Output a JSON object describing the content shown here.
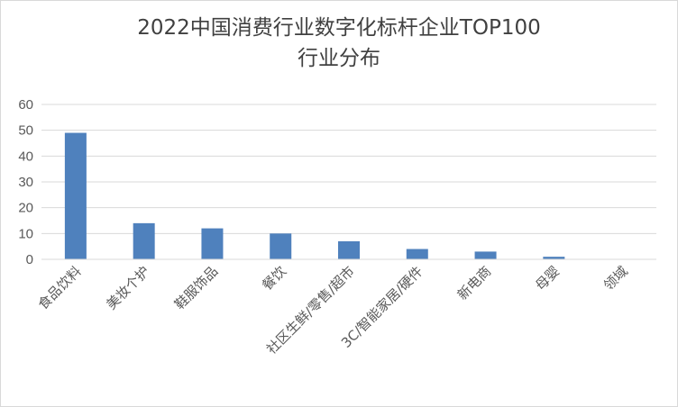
{
  "chart_data": {
    "type": "bar",
    "title_line1": "2022中国消费行业数字化标杆企业TOP100",
    "title_line2": "行业分布",
    "categories": [
      "食品饮料",
      "美妆个护",
      "鞋服饰品",
      "餐饮",
      "社区生鲜/零售/超市",
      "3C/智能家居/硬件",
      "新电商",
      "母婴",
      "领域"
    ],
    "values": [
      49,
      14,
      12,
      10,
      7,
      4,
      3,
      1,
      0
    ],
    "ylim": [
      0,
      60
    ],
    "yticks": [
      "0",
      "10",
      "20",
      "30",
      "40",
      "50",
      "60"
    ],
    "grid": true,
    "bar_color": "#4f81bd",
    "grid_color": "#d9d9d9"
  }
}
